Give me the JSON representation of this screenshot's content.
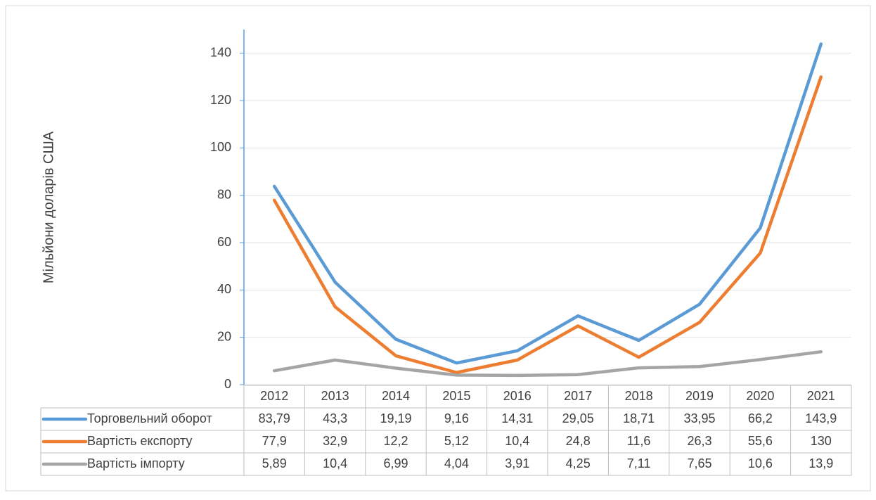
{
  "chart_data": {
    "type": "line",
    "y_label": "Мільйони доларів США",
    "categories": [
      "2012",
      "2013",
      "2014",
      "2015",
      "2016",
      "2017",
      "2018",
      "2019",
      "2020",
      "2021"
    ],
    "series": [
      {
        "name": "Торговельний оборот",
        "color": "#5b9bd5",
        "values": [
          83.79,
          43.3,
          19.19,
          9.16,
          14.31,
          29.05,
          18.71,
          33.95,
          66.2,
          143.9
        ],
        "value_labels": [
          "83,79",
          "43,3",
          "19,19",
          "9,16",
          "14,31",
          "29,05",
          "18,71",
          "33,95",
          "66,2",
          "143,9"
        ]
      },
      {
        "name": "Вартість експорту",
        "color": "#ed7d31",
        "values": [
          77.9,
          32.9,
          12.2,
          5.12,
          10.4,
          24.8,
          11.6,
          26.3,
          55.6,
          130
        ],
        "value_labels": [
          "77,9",
          "32,9",
          "12,2",
          "5,12",
          "10,4",
          "24,8",
          "11,6",
          "26,3",
          "55,6",
          "130"
        ]
      },
      {
        "name": "Вартість імпорту",
        "color": "#a5a5a5",
        "values": [
          5.89,
          10.4,
          6.99,
          4.04,
          3.91,
          4.25,
          7.11,
          7.65,
          10.6,
          13.9
        ],
        "value_labels": [
          "5,89",
          "10,4",
          "6,99",
          "4,04",
          "3,91",
          "4,25",
          "7,11",
          "7,65",
          "10,6",
          "13,9"
        ]
      }
    ],
    "ylim": [
      0,
      150
    ],
    "yticks": [
      0,
      20,
      40,
      60,
      80,
      100,
      120,
      140
    ],
    "grid": true
  }
}
